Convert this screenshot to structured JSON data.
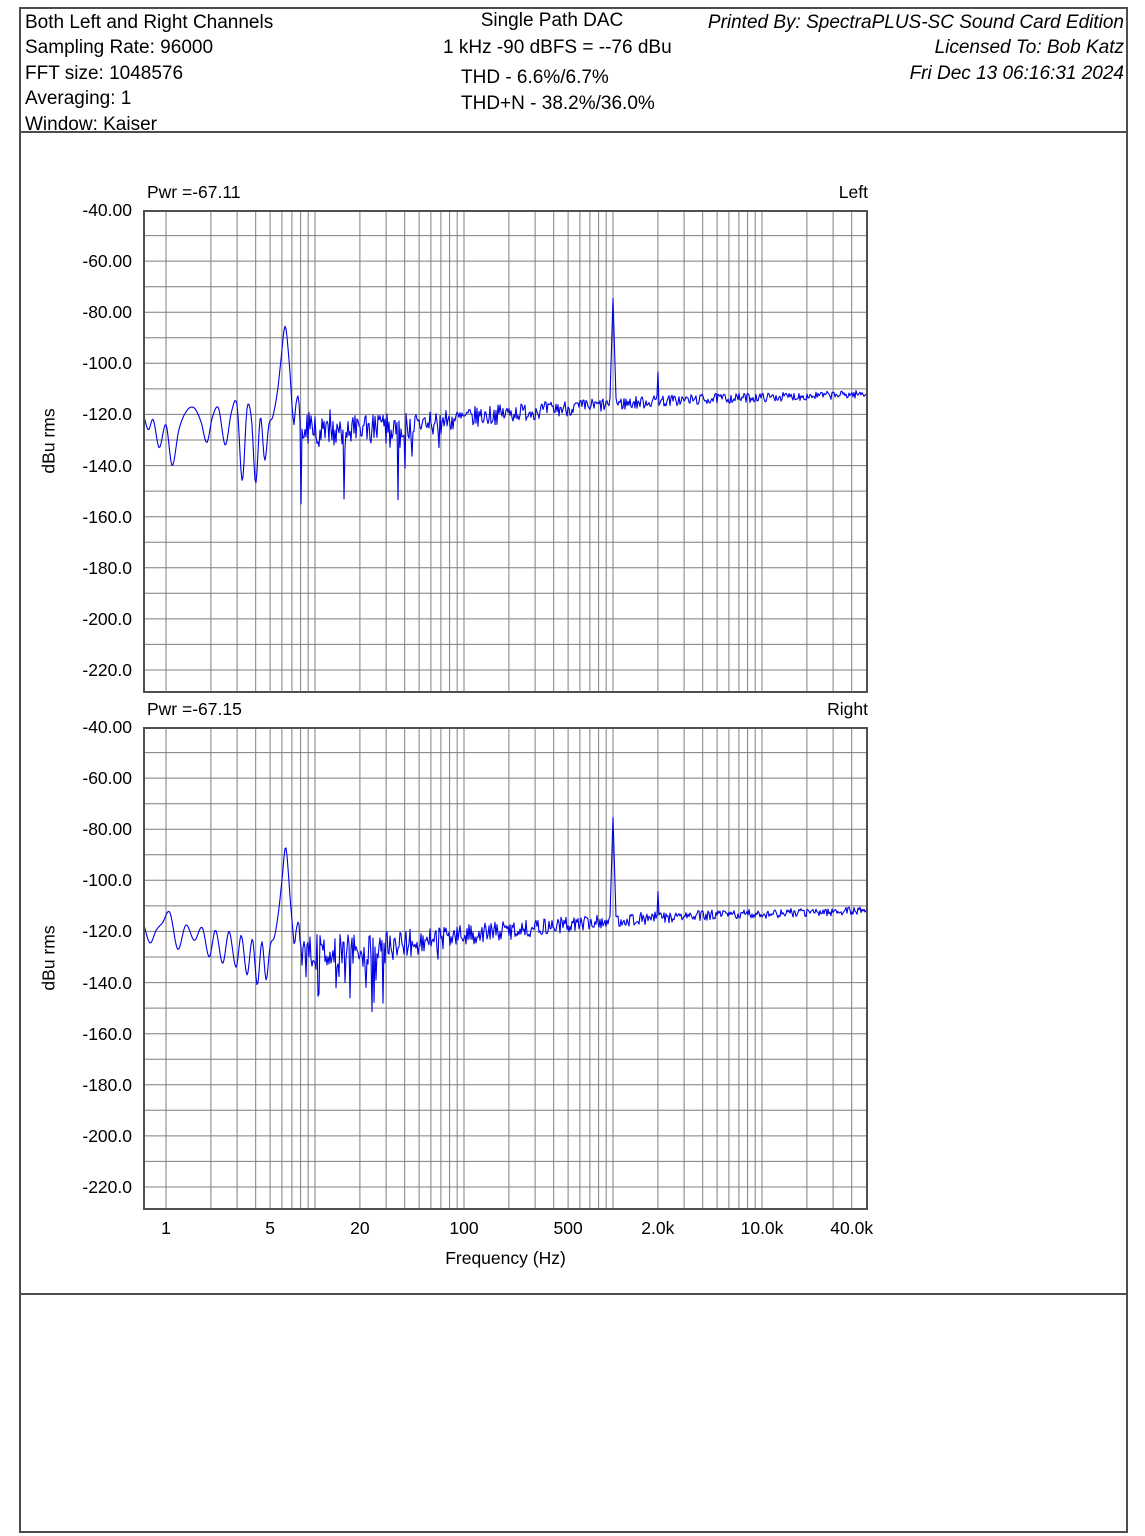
{
  "header": {
    "left_block": {
      "lines": [
        "Both Left and Right Channels",
        "Sampling Rate: 96000",
        "FFT size: 1048576",
        "Averaging: 1",
        "Window: Kaiser"
      ]
    },
    "center_block": {
      "title": "Single Path DAC",
      "calibration": "1 kHz -90 dBFS = --76 dBu",
      "thd": "THD - 6.6%/6.7%",
      "thdn": "THD+N - 38.2%/36.0%"
    },
    "right_block": {
      "printed_by": "Printed By: SpectraPLUS-SC Sound Card Edition",
      "licensed_to": "Licensed To: Bob Katz",
      "timestamp": "Fri Dec 13 06:16:31 2024"
    }
  },
  "colors": {
    "trace": "#0000e6",
    "grid": "#7f7f7f",
    "plot_border": "#4f4f4f",
    "section_border": "#4d4d4d",
    "text": "#000000",
    "background": "#ffffff"
  },
  "chart_data": [
    {
      "type": "line",
      "channel_label": "Left",
      "power_label": "Pwr =-67.11",
      "power_dbu": -67.11,
      "xlabel": "Frequency (Hz)",
      "ylabel": "dBu rms",
      "xscale": "log",
      "xlim": [
        0.7,
        51000
      ],
      "ylim": [
        -229,
        -40
      ],
      "grid": "on",
      "xticks": [
        {
          "f": 1,
          "label": "1"
        },
        {
          "f": 5,
          "label": "5"
        },
        {
          "f": 20,
          "label": "20"
        },
        {
          "f": 100,
          "label": "100"
        },
        {
          "f": 500,
          "label": "500"
        },
        {
          "f": 2000,
          "label": "2.0k"
        },
        {
          "f": 10000,
          "label": "10.0k"
        },
        {
          "f": 40000,
          "label": "40.0k"
        }
      ],
      "yticks": [
        {
          "v": -40,
          "label": "-40.00"
        },
        {
          "v": -60,
          "label": "-60.00"
        },
        {
          "v": -80,
          "label": "-80.00"
        },
        {
          "v": -100,
          "label": "-100.0"
        },
        {
          "v": -120,
          "label": "-120.0"
        },
        {
          "v": -140,
          "label": "-140.0"
        },
        {
          "v": -160,
          "label": "-160.0"
        },
        {
          "v": -180,
          "label": "-180.0"
        },
        {
          "v": -200,
          "label": "-200.0"
        },
        {
          "v": -220,
          "label": "-220.0"
        }
      ],
      "peaks": [
        {
          "f": 6.3,
          "dbu": -85.5,
          "slope": 4.5
        },
        {
          "f": 1000,
          "dbu": -74.5,
          "slope": 13
        },
        {
          "f": 2000,
          "dbu": -101.5,
          "slope": 13
        }
      ],
      "smooth_segment": [
        [
          0.7,
          -119
        ],
        [
          0.76,
          -126
        ],
        [
          0.82,
          -122
        ],
        [
          0.9,
          -133
        ],
        [
          1.0,
          -124
        ],
        [
          1.1,
          -140
        ],
        [
          1.22,
          -126
        ],
        [
          1.38,
          -118.5
        ],
        [
          1.55,
          -117.5
        ],
        [
          1.72,
          -123
        ],
        [
          1.88,
          -131
        ],
        [
          2.05,
          -121
        ],
        [
          2.25,
          -117.5
        ],
        [
          2.5,
          -132
        ],
        [
          2.75,
          -119
        ],
        [
          3.0,
          -116.5
        ],
        [
          3.25,
          -146
        ],
        [
          3.5,
          -117.5
        ],
        [
          3.75,
          -122
        ],
        [
          4.0,
          -147
        ],
        [
          4.3,
          -121
        ],
        [
          4.6,
          -138
        ],
        [
          4.9,
          -124
        ],
        [
          5.2,
          -121
        ],
        [
          5.6,
          -111
        ],
        [
          5.9,
          -99
        ],
        [
          6.3,
          -85.5
        ],
        [
          6.7,
          -99
        ],
        [
          6.95,
          -113
        ],
        [
          7.15,
          -125
        ],
        [
          7.45,
          -116
        ],
        [
          7.75,
          -113.5
        ],
        [
          8.0,
          -127
        ]
      ],
      "noise_floor": [
        [
          8,
          -126
        ],
        [
          12,
          -127
        ],
        [
          20,
          -127
        ],
        [
          35,
          -125
        ],
        [
          60,
          -123.5
        ],
        [
          100,
          -121.5
        ],
        [
          200,
          -119.5
        ],
        [
          500,
          -117.5
        ],
        [
          1000,
          -116
        ],
        [
          2000,
          -114.8
        ],
        [
          5000,
          -113.8
        ],
        [
          12000,
          -113.2
        ],
        [
          25000,
          -112.6
        ],
        [
          48000,
          -112
        ]
      ],
      "noise_halfband": [
        [
          8,
          6
        ],
        [
          15,
          7
        ],
        [
          30,
          6.5
        ],
        [
          60,
          5
        ],
        [
          100,
          4.3
        ],
        [
          300,
          3.4
        ],
        [
          1000,
          2.7
        ],
        [
          3000,
          2.2
        ],
        [
          10000,
          1.8
        ],
        [
          48000,
          1.5
        ]
      ],
      "seed": 7
    },
    {
      "type": "line",
      "channel_label": "Right",
      "power_label": "Pwr =-67.15",
      "power_dbu": -67.15,
      "xlabel": "Frequency (Hz)",
      "ylabel": "dBu rms",
      "xscale": "log",
      "xlim": [
        0.7,
        51000
      ],
      "ylim": [
        -229,
        -40
      ],
      "grid": "on",
      "xticks": [
        {
          "f": 1,
          "label": "1"
        },
        {
          "f": 5,
          "label": "5"
        },
        {
          "f": 20,
          "label": "20"
        },
        {
          "f": 100,
          "label": "100"
        },
        {
          "f": 500,
          "label": "500"
        },
        {
          "f": 2000,
          "label": "2.0k"
        },
        {
          "f": 10000,
          "label": "10.0k"
        },
        {
          "f": 40000,
          "label": "40.0k"
        }
      ],
      "yticks": [
        {
          "v": -40,
          "label": "-40.00"
        },
        {
          "v": -60,
          "label": "-60.00"
        },
        {
          "v": -80,
          "label": "-80.00"
        },
        {
          "v": -100,
          "label": "-100.0"
        },
        {
          "v": -120,
          "label": "-120.0"
        },
        {
          "v": -140,
          "label": "-140.0"
        },
        {
          "v": -160,
          "label": "-160.0"
        },
        {
          "v": -180,
          "label": "-180.0"
        },
        {
          "v": -200,
          "label": "-200.0"
        },
        {
          "v": -220,
          "label": "-220.0"
        }
      ],
      "peaks": [
        {
          "f": 6.35,
          "dbu": -87,
          "slope": 4.5
        },
        {
          "f": 1000,
          "dbu": -75.2,
          "slope": 13
        },
        {
          "f": 2000,
          "dbu": -102.5,
          "slope": 13
        }
      ],
      "smooth_segment": [
        [
          0.7,
          -116
        ],
        [
          0.78,
          -124.5
        ],
        [
          0.86,
          -119.5
        ],
        [
          0.95,
          -116.5
        ],
        [
          1.06,
          -112.5
        ],
        [
          1.2,
          -127
        ],
        [
          1.36,
          -117.5
        ],
        [
          1.55,
          -123.5
        ],
        [
          1.75,
          -118.5
        ],
        [
          1.95,
          -130
        ],
        [
          2.15,
          -119.5
        ],
        [
          2.4,
          -132.5
        ],
        [
          2.65,
          -120
        ],
        [
          2.95,
          -134
        ],
        [
          3.2,
          -121.5
        ],
        [
          3.5,
          -137
        ],
        [
          3.8,
          -123
        ],
        [
          4.1,
          -141
        ],
        [
          4.4,
          -124
        ],
        [
          4.7,
          -139
        ],
        [
          5.0,
          -125.5
        ],
        [
          5.35,
          -122
        ],
        [
          5.7,
          -112
        ],
        [
          6.0,
          -100
        ],
        [
          6.35,
          -87
        ],
        [
          6.7,
          -101
        ],
        [
          6.95,
          -116
        ],
        [
          7.2,
          -127
        ],
        [
          7.5,
          -119
        ],
        [
          7.8,
          -117
        ],
        [
          8.0,
          -128
        ]
      ],
      "noise_floor": [
        [
          8,
          -127
        ],
        [
          12,
          -128
        ],
        [
          20,
          -127.5
        ],
        [
          35,
          -125.5
        ],
        [
          60,
          -123.5
        ],
        [
          100,
          -121.5
        ],
        [
          200,
          -119.5
        ],
        [
          500,
          -117.3
        ],
        [
          1000,
          -115.8
        ],
        [
          2000,
          -114.6
        ],
        [
          5000,
          -113.6
        ],
        [
          12000,
          -113
        ],
        [
          25000,
          -112.4
        ],
        [
          48000,
          -111.8
        ]
      ],
      "noise_halfband": [
        [
          8,
          6
        ],
        [
          15,
          7
        ],
        [
          30,
          6.5
        ],
        [
          60,
          5
        ],
        [
          100,
          4.3
        ],
        [
          300,
          3.4
        ],
        [
          1000,
          2.7
        ],
        [
          3000,
          2.2
        ],
        [
          10000,
          1.8
        ],
        [
          48000,
          1.5
        ]
      ],
      "seed": 13
    }
  ]
}
